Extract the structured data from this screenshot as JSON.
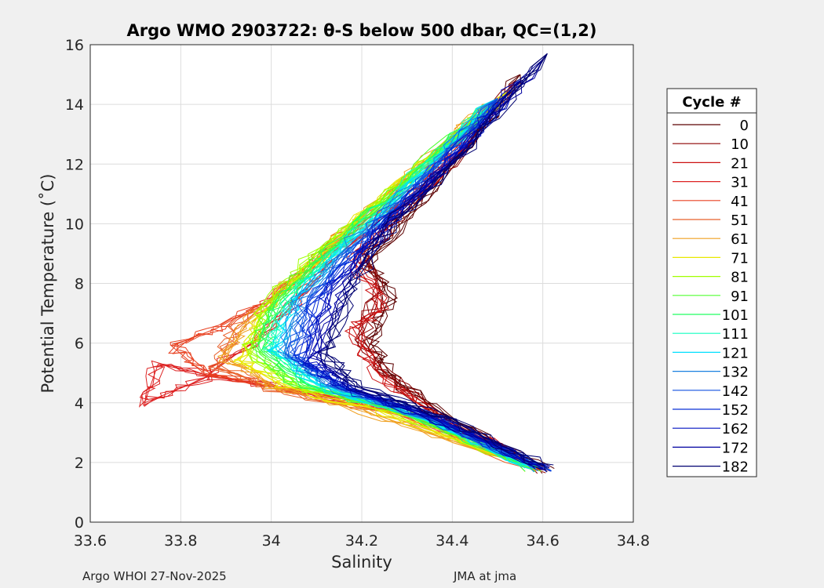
{
  "footer": {
    "left": "Argo WHOI 27-Nov-2025",
    "right": "JMA at jma"
  },
  "chart_data": {
    "type": "line",
    "title": "Argo WMO 2903722: θ-S below 500 dbar,  QC=(1,2)",
    "xlabel": "Salinity",
    "ylabel": "Potential Temperature (˚C)",
    "xlim": [
      33.6,
      34.8
    ],
    "ylim": [
      0,
      16
    ],
    "xticks": [
      "33.6",
      "33.8",
      "34",
      "34.2",
      "34.4",
      "34.6",
      "34.8"
    ],
    "yticks": [
      "0",
      "2",
      "4",
      "6",
      "8",
      "10",
      "12",
      "14",
      "16"
    ],
    "grid": true,
    "legend": {
      "title": "Cycle #",
      "placement": "outside-right"
    },
    "series": [
      {
        "name": "0",
        "color": "#5c0000",
        "points": [
          [
            34.61,
            1.7
          ],
          [
            34.4,
            3.4
          ],
          [
            34.27,
            4.8
          ],
          [
            34.22,
            6
          ],
          [
            34.26,
            7.5
          ],
          [
            34.22,
            8.8
          ],
          [
            34.33,
            10.8
          ],
          [
            34.45,
            13
          ],
          [
            34.55,
            15
          ]
        ]
      },
      {
        "name": "10",
        "color": "#8b0000",
        "points": [
          [
            34.6,
            1.75
          ],
          [
            34.38,
            3.5
          ],
          [
            34.25,
            5
          ],
          [
            34.2,
            6.2
          ],
          [
            34.24,
            7.8
          ],
          [
            34.2,
            9
          ],
          [
            34.3,
            10.5
          ],
          [
            34.44,
            12.8
          ],
          [
            34.54,
            14.8
          ]
        ]
      },
      {
        "name": "21",
        "color": "#cc1111",
        "points": [
          [
            34.6,
            1.8
          ],
          [
            34.36,
            3.6
          ],
          [
            34.24,
            4.9
          ],
          [
            34.18,
            6.5
          ],
          [
            34.25,
            7.2
          ],
          [
            34.18,
            8.8
          ],
          [
            34.3,
            10.8
          ],
          [
            34.43,
            12.6
          ]
        ]
      },
      {
        "name": "31",
        "color": "#dd2222",
        "points": [
          [
            34.6,
            1.8
          ],
          [
            34.3,
            3.7
          ],
          [
            34.1,
            4.3
          ],
          [
            33.9,
            4.8
          ],
          [
            33.75,
            5.3
          ],
          [
            33.72,
            4
          ],
          [
            33.85,
            4.8
          ],
          [
            34,
            6.5
          ],
          [
            34.15,
            9
          ],
          [
            34.35,
            11.5
          ],
          [
            34.5,
            14.2
          ]
        ]
      },
      {
        "name": "41",
        "color": "#e84020",
        "points": [
          [
            34.6,
            1.8
          ],
          [
            34.3,
            3.6
          ],
          [
            34.05,
            4.4
          ],
          [
            33.85,
            5
          ],
          [
            33.78,
            5.9
          ],
          [
            33.88,
            6.5
          ],
          [
            34.0,
            7.5
          ],
          [
            34.15,
            9.5
          ],
          [
            34.35,
            12
          ],
          [
            34.5,
            14.2
          ]
        ]
      },
      {
        "name": "51",
        "color": "#e8602a",
        "points": [
          [
            34.58,
            1.8
          ],
          [
            34.28,
            3.6
          ],
          [
            34.0,
            4.5
          ],
          [
            33.88,
            5.2
          ],
          [
            33.92,
            6.5
          ],
          [
            34.05,
            8
          ],
          [
            34.2,
            10
          ],
          [
            34.38,
            12.5
          ],
          [
            34.52,
            14.3
          ]
        ]
      },
      {
        "name": "61",
        "color": "#f0a020",
        "points": [
          [
            34.58,
            1.8
          ],
          [
            34.25,
            3.5
          ],
          [
            34.0,
            4.6
          ],
          [
            33.9,
            5.5
          ],
          [
            33.95,
            6.8
          ],
          [
            34.08,
            8.5
          ],
          [
            34.22,
            10.5
          ],
          [
            34.4,
            13
          ],
          [
            34.55,
            14.8
          ]
        ]
      },
      {
        "name": "71",
        "color": "#e8e800",
        "points": [
          [
            34.58,
            1.8
          ],
          [
            34.25,
            3.7
          ],
          [
            34.02,
            4.6
          ],
          [
            33.93,
            5.4
          ],
          [
            33.98,
            7
          ],
          [
            34.1,
            8.8
          ],
          [
            34.25,
            11
          ],
          [
            34.42,
            13
          ],
          [
            34.52,
            14.4
          ]
        ]
      },
      {
        "name": "81",
        "color": "#a0ff00",
        "points": [
          [
            34.58,
            1.8
          ],
          [
            34.28,
            3.7
          ],
          [
            34.05,
            4.6
          ],
          [
            33.95,
            5.6
          ],
          [
            33.98,
            7.2
          ],
          [
            34.1,
            9
          ],
          [
            34.3,
            11.5
          ],
          [
            34.5,
            14.2
          ]
        ]
      },
      {
        "name": "91",
        "color": "#50ff30",
        "points": [
          [
            34.58,
            1.8
          ],
          [
            34.3,
            3.7
          ],
          [
            34.06,
            4.6
          ],
          [
            33.97,
            5.8
          ],
          [
            34.0,
            7.3
          ],
          [
            34.12,
            9
          ],
          [
            34.3,
            11.5
          ],
          [
            34.5,
            14.2
          ]
        ]
      },
      {
        "name": "101",
        "color": "#20ff60",
        "points": [
          [
            34.58,
            1.8
          ],
          [
            34.3,
            3.7
          ],
          [
            34.08,
            4.6
          ],
          [
            33.98,
            5.8
          ],
          [
            34.02,
            7.3
          ],
          [
            34.14,
            9.2
          ],
          [
            34.32,
            11.6
          ],
          [
            34.5,
            14.2
          ]
        ]
      },
      {
        "name": "111",
        "color": "#10ffc0",
        "points": [
          [
            34.58,
            1.8
          ],
          [
            34.32,
            3.6
          ],
          [
            34.1,
            4.6
          ],
          [
            34.0,
            5.8
          ],
          [
            34.03,
            7.3
          ],
          [
            34.15,
            9.2
          ],
          [
            34.32,
            11.6
          ],
          [
            34.5,
            14.2
          ]
        ]
      },
      {
        "name": "121",
        "color": "#00e0ff",
        "points": [
          [
            34.58,
            1.8
          ],
          [
            34.32,
            3.6
          ],
          [
            34.1,
            4.6
          ],
          [
            34.01,
            5.8
          ],
          [
            34.05,
            7.4
          ],
          [
            34.17,
            9.3
          ],
          [
            34.34,
            11.8
          ],
          [
            34.5,
            14.2
          ]
        ]
      },
      {
        "name": "132",
        "color": "#1a80e0",
        "points": [
          [
            34.6,
            1.8
          ],
          [
            34.34,
            3.5
          ],
          [
            34.12,
            4.6
          ],
          [
            34.03,
            5.7
          ],
          [
            34.06,
            7.4
          ],
          [
            34.18,
            9.4
          ],
          [
            34.35,
            11.8
          ],
          [
            34.5,
            14.2
          ]
        ]
      },
      {
        "name": "142",
        "color": "#1050e0",
        "points": [
          [
            34.6,
            1.8
          ],
          [
            34.35,
            3.5
          ],
          [
            34.14,
            4.6
          ],
          [
            34.05,
            5.6
          ],
          [
            34.08,
            7.4
          ],
          [
            34.2,
            9.5
          ],
          [
            34.36,
            11.9
          ],
          [
            34.5,
            14.2
          ]
        ]
      },
      {
        "name": "152",
        "color": "#0a30d8",
        "points": [
          [
            34.6,
            1.8
          ],
          [
            34.36,
            3.5
          ],
          [
            34.15,
            4.6
          ],
          [
            34.06,
            5.5
          ],
          [
            34.1,
            7.5
          ],
          [
            34.22,
            9.6
          ],
          [
            34.38,
            12
          ],
          [
            34.52,
            14.3
          ]
        ]
      },
      {
        "name": "162",
        "color": "#0010c0",
        "points": [
          [
            34.6,
            1.8
          ],
          [
            34.37,
            3.4
          ],
          [
            34.16,
            4.5
          ],
          [
            34.08,
            5.4
          ],
          [
            34.12,
            7.5
          ],
          [
            34.24,
            9.8
          ],
          [
            34.4,
            12.2
          ],
          [
            34.55,
            14.8
          ]
        ]
      },
      {
        "name": "172",
        "color": "#0000a0",
        "points": [
          [
            34.6,
            1.8
          ],
          [
            34.38,
            3.4
          ],
          [
            34.18,
            4.5
          ],
          [
            34.1,
            5.5
          ],
          [
            34.15,
            7.6
          ],
          [
            34.26,
            10
          ],
          [
            34.42,
            12.4
          ],
          [
            34.6,
            15.5
          ]
        ]
      },
      {
        "name": "182",
        "color": "#000070",
        "points": [
          [
            34.61,
            1.8
          ],
          [
            34.4,
            3.4
          ],
          [
            34.2,
            4.5
          ],
          [
            34.12,
            5.6
          ],
          [
            34.17,
            7.7
          ],
          [
            34.28,
            10.2
          ],
          [
            34.44,
            12.6
          ],
          [
            34.61,
            15.7
          ]
        ]
      }
    ]
  }
}
